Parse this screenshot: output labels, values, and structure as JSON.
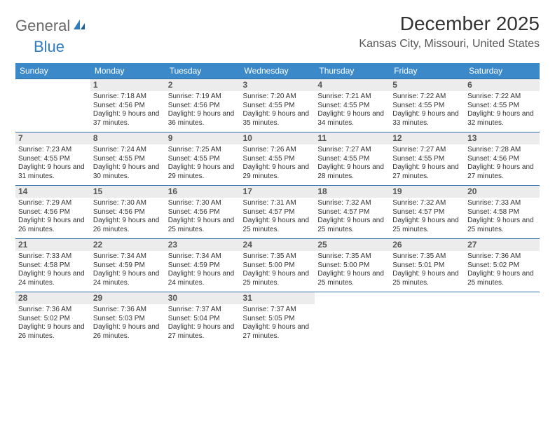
{
  "brand": {
    "part1": "General",
    "part2": "Blue"
  },
  "title": "December 2025",
  "location": "Kansas City, Missouri, United States",
  "colors": {
    "header_bg": "#3b89c9",
    "header_text": "#ffffff",
    "row_border": "#2f6fa8",
    "daynum_bg": "#ececec",
    "logo_gray": "#6a6a6a",
    "logo_blue": "#2f7bbf"
  },
  "day_headers": [
    "Sunday",
    "Monday",
    "Tuesday",
    "Wednesday",
    "Thursday",
    "Friday",
    "Saturday"
  ],
  "weeks": [
    [
      null,
      {
        "n": "1",
        "sr": "Sunrise: 7:18 AM",
        "ss": "Sunset: 4:56 PM",
        "dl": "Daylight: 9 hours and 37 minutes."
      },
      {
        "n": "2",
        "sr": "Sunrise: 7:19 AM",
        "ss": "Sunset: 4:56 PM",
        "dl": "Daylight: 9 hours and 36 minutes."
      },
      {
        "n": "3",
        "sr": "Sunrise: 7:20 AM",
        "ss": "Sunset: 4:55 PM",
        "dl": "Daylight: 9 hours and 35 minutes."
      },
      {
        "n": "4",
        "sr": "Sunrise: 7:21 AM",
        "ss": "Sunset: 4:55 PM",
        "dl": "Daylight: 9 hours and 34 minutes."
      },
      {
        "n": "5",
        "sr": "Sunrise: 7:22 AM",
        "ss": "Sunset: 4:55 PM",
        "dl": "Daylight: 9 hours and 33 minutes."
      },
      {
        "n": "6",
        "sr": "Sunrise: 7:22 AM",
        "ss": "Sunset: 4:55 PM",
        "dl": "Daylight: 9 hours and 32 minutes."
      }
    ],
    [
      {
        "n": "7",
        "sr": "Sunrise: 7:23 AM",
        "ss": "Sunset: 4:55 PM",
        "dl": "Daylight: 9 hours and 31 minutes."
      },
      {
        "n": "8",
        "sr": "Sunrise: 7:24 AM",
        "ss": "Sunset: 4:55 PM",
        "dl": "Daylight: 9 hours and 30 minutes."
      },
      {
        "n": "9",
        "sr": "Sunrise: 7:25 AM",
        "ss": "Sunset: 4:55 PM",
        "dl": "Daylight: 9 hours and 29 minutes."
      },
      {
        "n": "10",
        "sr": "Sunrise: 7:26 AM",
        "ss": "Sunset: 4:55 PM",
        "dl": "Daylight: 9 hours and 29 minutes."
      },
      {
        "n": "11",
        "sr": "Sunrise: 7:27 AM",
        "ss": "Sunset: 4:55 PM",
        "dl": "Daylight: 9 hours and 28 minutes."
      },
      {
        "n": "12",
        "sr": "Sunrise: 7:27 AM",
        "ss": "Sunset: 4:55 PM",
        "dl": "Daylight: 9 hours and 27 minutes."
      },
      {
        "n": "13",
        "sr": "Sunrise: 7:28 AM",
        "ss": "Sunset: 4:56 PM",
        "dl": "Daylight: 9 hours and 27 minutes."
      }
    ],
    [
      {
        "n": "14",
        "sr": "Sunrise: 7:29 AM",
        "ss": "Sunset: 4:56 PM",
        "dl": "Daylight: 9 hours and 26 minutes."
      },
      {
        "n": "15",
        "sr": "Sunrise: 7:30 AM",
        "ss": "Sunset: 4:56 PM",
        "dl": "Daylight: 9 hours and 26 minutes."
      },
      {
        "n": "16",
        "sr": "Sunrise: 7:30 AM",
        "ss": "Sunset: 4:56 PM",
        "dl": "Daylight: 9 hours and 25 minutes."
      },
      {
        "n": "17",
        "sr": "Sunrise: 7:31 AM",
        "ss": "Sunset: 4:57 PM",
        "dl": "Daylight: 9 hours and 25 minutes."
      },
      {
        "n": "18",
        "sr": "Sunrise: 7:32 AM",
        "ss": "Sunset: 4:57 PM",
        "dl": "Daylight: 9 hours and 25 minutes."
      },
      {
        "n": "19",
        "sr": "Sunrise: 7:32 AM",
        "ss": "Sunset: 4:57 PM",
        "dl": "Daylight: 9 hours and 25 minutes."
      },
      {
        "n": "20",
        "sr": "Sunrise: 7:33 AM",
        "ss": "Sunset: 4:58 PM",
        "dl": "Daylight: 9 hours and 25 minutes."
      }
    ],
    [
      {
        "n": "21",
        "sr": "Sunrise: 7:33 AM",
        "ss": "Sunset: 4:58 PM",
        "dl": "Daylight: 9 hours and 24 minutes."
      },
      {
        "n": "22",
        "sr": "Sunrise: 7:34 AM",
        "ss": "Sunset: 4:59 PM",
        "dl": "Daylight: 9 hours and 24 minutes."
      },
      {
        "n": "23",
        "sr": "Sunrise: 7:34 AM",
        "ss": "Sunset: 4:59 PM",
        "dl": "Daylight: 9 hours and 24 minutes."
      },
      {
        "n": "24",
        "sr": "Sunrise: 7:35 AM",
        "ss": "Sunset: 5:00 PM",
        "dl": "Daylight: 9 hours and 25 minutes."
      },
      {
        "n": "25",
        "sr": "Sunrise: 7:35 AM",
        "ss": "Sunset: 5:00 PM",
        "dl": "Daylight: 9 hours and 25 minutes."
      },
      {
        "n": "26",
        "sr": "Sunrise: 7:35 AM",
        "ss": "Sunset: 5:01 PM",
        "dl": "Daylight: 9 hours and 25 minutes."
      },
      {
        "n": "27",
        "sr": "Sunrise: 7:36 AM",
        "ss": "Sunset: 5:02 PM",
        "dl": "Daylight: 9 hours and 25 minutes."
      }
    ],
    [
      {
        "n": "28",
        "sr": "Sunrise: 7:36 AM",
        "ss": "Sunset: 5:02 PM",
        "dl": "Daylight: 9 hours and 26 minutes."
      },
      {
        "n": "29",
        "sr": "Sunrise: 7:36 AM",
        "ss": "Sunset: 5:03 PM",
        "dl": "Daylight: 9 hours and 26 minutes."
      },
      {
        "n": "30",
        "sr": "Sunrise: 7:37 AM",
        "ss": "Sunset: 5:04 PM",
        "dl": "Daylight: 9 hours and 27 minutes."
      },
      {
        "n": "31",
        "sr": "Sunrise: 7:37 AM",
        "ss": "Sunset: 5:05 PM",
        "dl": "Daylight: 9 hours and 27 minutes."
      },
      null,
      null,
      null
    ]
  ]
}
